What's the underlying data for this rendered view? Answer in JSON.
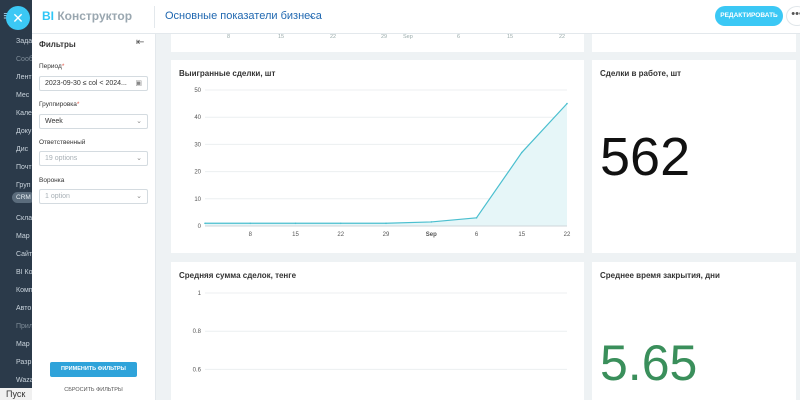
{
  "portal": {
    "menu_items": [
      {
        "label": "Зада",
        "dim": false
      },
      {
        "label": "Сооб",
        "dim": true
      },
      {
        "label": "Лент",
        "dim": false
      },
      {
        "label": "Мес",
        "dim": false
      },
      {
        "label": "Кале",
        "dim": false
      },
      {
        "label": "Доку",
        "dim": false
      },
      {
        "label": "Дис",
        "dim": false
      },
      {
        "label": "Почт",
        "dim": false
      },
      {
        "label": "Груп",
        "dim": false
      },
      {
        "label": "Скла",
        "dim": false
      },
      {
        "label": "Мар",
        "dim": false
      },
      {
        "label": "Сайт",
        "dim": false
      },
      {
        "label": "BI Ко",
        "dim": false
      },
      {
        "label": "Комп",
        "dim": false
      },
      {
        "label": "Авто",
        "dim": false
      },
      {
        "label": "Прил",
        "dim": true
      },
      {
        "label": "Мар",
        "dim": false
      },
      {
        "label": "Разр",
        "dim": false
      },
      {
        "label": "Waza",
        "dim": false
      }
    ],
    "crm_pill": "CRM",
    "taskbar_start": "Пуск"
  },
  "header": {
    "logo_bi": "BI",
    "logo_rest": "Конструктор",
    "dashboard_title": "Основные показатели бизнеса",
    "edit_label": "РЕДАКТИРОВАТЬ",
    "more_label": "•••"
  },
  "filters": {
    "title": "Фильтры",
    "period": {
      "label": "Период",
      "value": "2023-09-30 ≤ col < 2024..."
    },
    "grouping": {
      "label": "Группировка",
      "value": "Week"
    },
    "responsible": {
      "label": "Ответственный",
      "placeholder": "19 options"
    },
    "funnel": {
      "label": "Воронка",
      "placeholder": "1 option"
    },
    "apply_label": "ПРИМЕНИТЬ ФИЛЬТРЫ",
    "reset_label": "СБРОСИТЬ ФИЛЬТРЫ"
  },
  "top_row": {
    "tick_labels": [
      "8",
      "15",
      "22",
      "29",
      "Sep",
      "6",
      "15",
      "22"
    ]
  },
  "cards": {
    "won_title": "Выигранные сделки, шт",
    "in_work_title": "Сделки в работе, шт",
    "in_work_value": "562",
    "avg_title": "Средняя сумма сделок, тенге",
    "close_title": "Среднее время закрытия, дни",
    "close_value": "5.65"
  },
  "colors": {
    "accent": "#3bc8f5",
    "line": "#4bbfcf",
    "area": "#e6f6f8",
    "green_value": "#3a8f5b"
  },
  "chart_data": [
    {
      "type": "area",
      "title": "Выигранные сделки, шт",
      "x": [
        "Aug 1",
        "Aug 8",
        "Aug 15",
        "Aug 22",
        "Aug 29",
        "Sep 1",
        "Sep 6",
        "Sep 15",
        "Sep 22"
      ],
      "series": [
        {
          "values": [
            1,
            1,
            1,
            1,
            1,
            1.5,
            3,
            27,
            45
          ]
        }
      ],
      "x_tick_labels": [
        "8",
        "15",
        "22",
        "29",
        "Sep",
        "6",
        "15",
        "22"
      ],
      "y_ticks": [
        0,
        10,
        20,
        30,
        40,
        50
      ],
      "ylim": [
        0,
        50
      ],
      "grid": true
    },
    {
      "type": "line",
      "title": "Средняя сумма сделок, тенге",
      "y_ticks": [
        0.4,
        0.6,
        0.8,
        1
      ],
      "ylim": [
        0,
        1
      ],
      "grid": true
    }
  ]
}
